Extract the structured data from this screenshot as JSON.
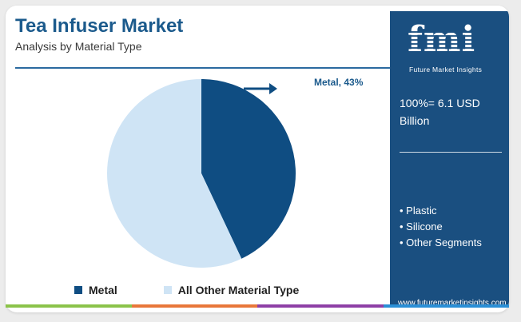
{
  "header": {
    "title": "Tea Infuser Market",
    "subtitle": "Analysis by Material Type"
  },
  "chart_data": {
    "type": "pie",
    "slices": [
      {
        "label": "Metal",
        "value": 43,
        "color": "#0f4d82"
      },
      {
        "label": "All Other Material Type",
        "value": 57,
        "color": "#cfe4f5"
      }
    ],
    "callout": "Metal, 43%",
    "legend": [
      "Metal",
      "All Other Material Type"
    ],
    "legend_placement": "bottom"
  },
  "side_panel": {
    "logo_text": "fmi",
    "logo_caption": "Future Market Insights",
    "total": "100%= 6.1 USD Billion",
    "other_segments": [
      "Plastic",
      "Silicone",
      "Other Segments"
    ],
    "website": "www.futuremarketinsights.com"
  },
  "colors": {
    "brand_blue": "#1a4f80",
    "accent_bar": [
      "#8bc34a",
      "#e8773a",
      "#8e3fa6",
      "#2a8fd6"
    ]
  }
}
